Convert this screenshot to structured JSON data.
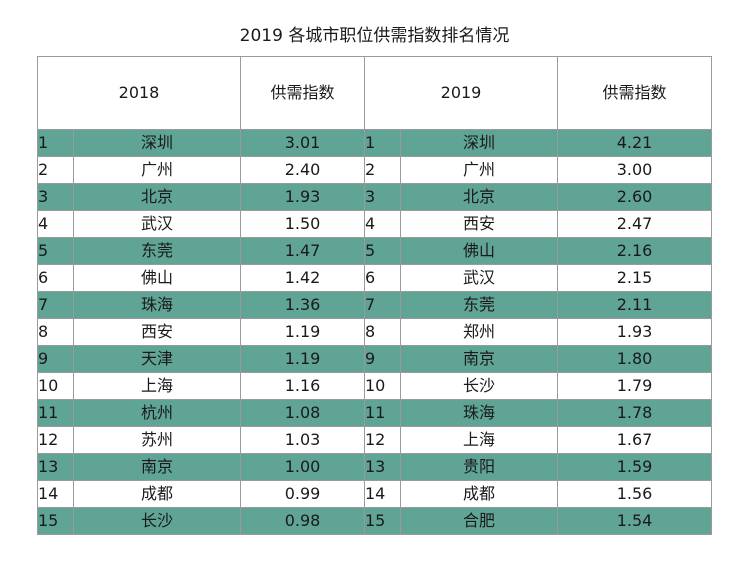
{
  "title": "2019 各城市职位供需指数排名情况",
  "headers": {
    "year_a": "2018",
    "index_a": "供需指数",
    "year_b": "2019",
    "index_b": "供需指数"
  },
  "colors": {
    "row_shade": "#5fa495",
    "row_plain": "#ffffff",
    "border": "#9a9a9a"
  },
  "rows": [
    {
      "rank_a": "1",
      "city_a": "深圳",
      "value_a": "3.01",
      "rank_b": "1",
      "city_b": "深圳",
      "value_b": "4.21"
    },
    {
      "rank_a": "2",
      "city_a": "广州",
      "value_a": "2.40",
      "rank_b": "2",
      "city_b": "广州",
      "value_b": "3.00"
    },
    {
      "rank_a": "3",
      "city_a": "北京",
      "value_a": "1.93",
      "rank_b": "3",
      "city_b": "北京",
      "value_b": "2.60"
    },
    {
      "rank_a": "4",
      "city_a": "武汉",
      "value_a": "1.50",
      "rank_b": "4",
      "city_b": "西安",
      "value_b": "2.47"
    },
    {
      "rank_a": "5",
      "city_a": "东莞",
      "value_a": "1.47",
      "rank_b": "5",
      "city_b": "佛山",
      "value_b": "2.16"
    },
    {
      "rank_a": "6",
      "city_a": "佛山",
      "value_a": "1.42",
      "rank_b": "6",
      "city_b": "武汉",
      "value_b": "2.15"
    },
    {
      "rank_a": "7",
      "city_a": "珠海",
      "value_a": "1.36",
      "rank_b": "7",
      "city_b": "东莞",
      "value_b": "2.11"
    },
    {
      "rank_a": "8",
      "city_a": "西安",
      "value_a": "1.19",
      "rank_b": "8",
      "city_b": "郑州",
      "value_b": "1.93"
    },
    {
      "rank_a": "9",
      "city_a": "天津",
      "value_a": "1.19",
      "rank_b": "9",
      "city_b": "南京",
      "value_b": "1.80"
    },
    {
      "rank_a": "10",
      "city_a": "上海",
      "value_a": "1.16",
      "rank_b": "10",
      "city_b": "长沙",
      "value_b": "1.79"
    },
    {
      "rank_a": "11",
      "city_a": "杭州",
      "value_a": "1.08",
      "rank_b": "11",
      "city_b": "珠海",
      "value_b": "1.78"
    },
    {
      "rank_a": "12",
      "city_a": "苏州",
      "value_a": "1.03",
      "rank_b": "12",
      "city_b": "上海",
      "value_b": "1.67"
    },
    {
      "rank_a": "13",
      "city_a": "南京",
      "value_a": "1.00",
      "rank_b": "13",
      "city_b": "贵阳",
      "value_b": "1.59"
    },
    {
      "rank_a": "14",
      "city_a": "成都",
      "value_a": "0.99",
      "rank_b": "14",
      "city_b": "成都",
      "value_b": "1.56"
    },
    {
      "rank_a": "15",
      "city_a": "长沙",
      "value_a": "0.98",
      "rank_b": "15",
      "city_b": "合肥",
      "value_b": "1.54"
    }
  ]
}
